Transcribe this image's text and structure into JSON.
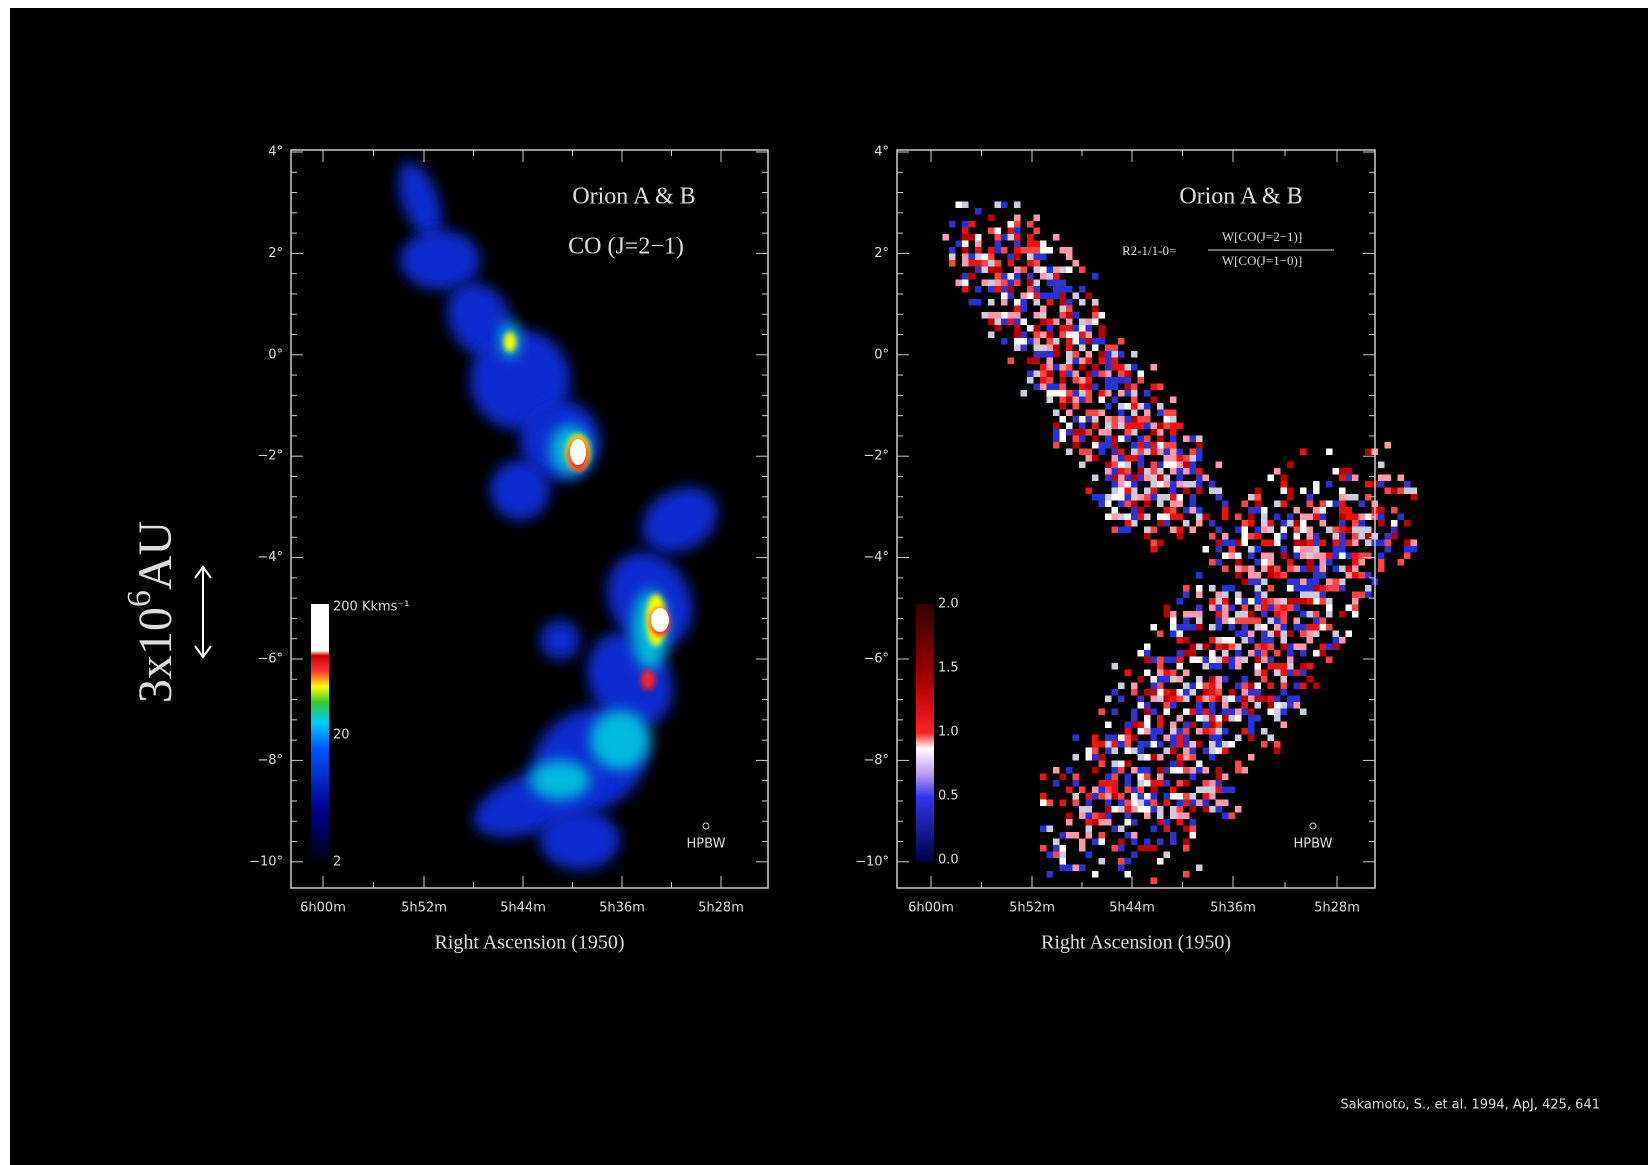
{
  "side_label": {
    "base": "3x10",
    "exponent": "6",
    "unit": "AU"
  },
  "panels": [
    {
      "title": "Orion A & B",
      "subtitle": "CO (J=2−1)",
      "y_ticks": [
        "4°",
        "2°",
        "0°",
        "−2°",
        "−4°",
        "−6°",
        "−8°",
        "−10°"
      ],
      "x_ticks": [
        "6h00m",
        "5h52m",
        "5h44m",
        "5h36m",
        "5h28m"
      ],
      "x_label": "Right Ascension (1950)",
      "colorbar": [
        "200 Kkms⁻¹",
        "20",
        "2"
      ],
      "beam": "HPBW"
    },
    {
      "title": "Orion A & B",
      "formula": {
        "lhs": "R2-1/1-0=",
        "numerator": "W[CO(J=2−1)]",
        "denominator": "W[CO(J=1−0)]"
      },
      "y_ticks": [
        "4°",
        "2°",
        "0°",
        "−2°",
        "−4°",
        "−6°",
        "−8°",
        "−10°"
      ],
      "x_ticks": [
        "6h00m",
        "5h52m",
        "5h44m",
        "5h36m",
        "5h28m"
      ],
      "x_label": "Right Ascension (1950)",
      "colorbar": [
        "2.0",
        "1.5",
        "1.0",
        "0.5",
        "0.0"
      ],
      "beam": "HPBW"
    }
  ],
  "citation": "Sakamoto, S., et al. 1994, ApJ, 425, 641"
}
